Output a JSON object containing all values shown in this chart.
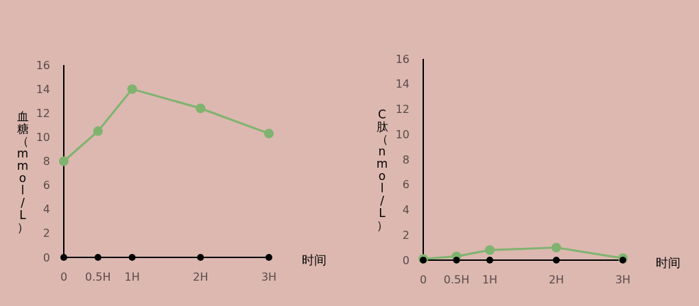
{
  "chart_data": [
    {
      "type": "line",
      "xlabel": "时间",
      "ylabel": "血糖（mmol/L）",
      "x": [
        0,
        0.5,
        1,
        2,
        3
      ],
      "xlim": [
        0,
        3
      ],
      "xticks": [
        0,
        {
          "value": 0.5,
          "label": "0.5H"
        },
        {
          "value": 1,
          "label": "1H"
        },
        {
          "value": 2,
          "label": "2H"
        },
        {
          "value": 3,
          "label": "3H"
        }
      ],
      "ylim": [
        0,
        16
      ],
      "yticks": [
        0,
        2,
        4,
        6,
        8,
        10,
        12,
        14,
        16
      ],
      "marker": "circle",
      "grid": false,
      "legend": false,
      "series": [
        {
          "type": "line",
          "color": "#7fb36f",
          "values": [
            8,
            10.5,
            14,
            12.4,
            10.3
          ]
        },
        {
          "type": "scatter",
          "color": "#000000",
          "values": [
            0,
            0,
            0,
            0,
            0
          ]
        }
      ]
    },
    {
      "type": "line",
      "xlabel": "时间",
      "ylabel": "C肽（nmol/L）",
      "x": [
        0,
        0.5,
        1,
        2,
        3
      ],
      "xlim": [
        0,
        3
      ],
      "xticks": [
        0,
        {
          "value": 0.5,
          "label": "0.5H"
        },
        {
          "value": 1,
          "label": "1H"
        },
        {
          "value": 2,
          "label": "2H"
        },
        {
          "value": 3,
          "label": "3H"
        }
      ],
      "ylim": [
        0,
        16
      ],
      "yticks": [
        0,
        2,
        4,
        6,
        8,
        10,
        12,
        14,
        16
      ],
      "marker": "circle",
      "grid": false,
      "legend": false,
      "series": [
        {
          "type": "line",
          "color": "#7fb36f",
          "values": [
            0.1,
            0.3,
            0.8,
            1,
            0.15
          ]
        },
        {
          "type": "scatter",
          "color": "#000000",
          "values": [
            0,
            0,
            0,
            0,
            0
          ]
        }
      ]
    }
  ]
}
